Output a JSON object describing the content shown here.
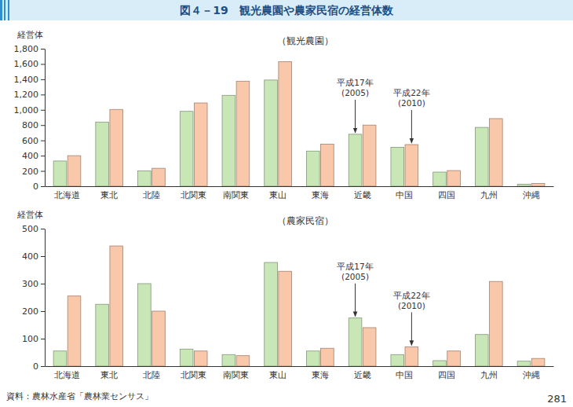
{
  "title": "図４－19　観光農園や農家民宿の経営体数",
  "source": "資料：農林水産省「農林業センサス」",
  "page": 281,
  "chart_data": [
    {
      "type": "bar",
      "title": "（観光農園）",
      "y_label": "経営体",
      "categories": [
        "北海道",
        "東北",
        "北陸",
        "北関東",
        "南関東",
        "東山",
        "東海",
        "近畿",
        "中国",
        "四国",
        "九州",
        "沖縄"
      ],
      "series": [
        {
          "color": "#c9e7b6",
          "values": [
            330,
            840,
            200,
            980,
            1190,
            1390,
            460,
            680,
            510,
            185,
            770,
            25
          ]
        },
        {
          "color": "#f9c7aa",
          "values": [
            400,
            1005,
            235,
            1090,
            1375,
            1630,
            550,
            800,
            545,
            205,
            885,
            35
          ]
        }
      ],
      "ylim": [
        0,
        1800
      ],
      "yticks": [
        0,
        200,
        400,
        600,
        800,
        {
          "value": 1000,
          "label": "1,000"
        },
        {
          "value": 1200,
          "label": "1,200"
        },
        {
          "value": 1400,
          "label": "1,400"
        },
        {
          "value": 1600,
          "label": "1,600"
        },
        {
          "value": 1800,
          "label": "1,800"
        }
      ],
      "grid": false,
      "annotations": [
        {
          "text": [
            "平成17年",
            "(2005)"
          ],
          "category": "近畿",
          "series": 0
        },
        {
          "text": [
            "平成22年",
            "(2010)"
          ],
          "category": "中国",
          "series": 1
        }
      ]
    },
    {
      "type": "bar",
      "title": "（農家民宿）",
      "y_label": "経営体",
      "categories": [
        "北海道",
        "東北",
        "北陸",
        "北関東",
        "南関東",
        "東山",
        "東海",
        "近畿",
        "中国",
        "四国",
        "九州",
        "沖縄"
      ],
      "series": [
        {
          "color": "#c9e7b6",
          "values": [
            55,
            225,
            300,
            62,
            42,
            377,
            55,
            175,
            42,
            20,
            115,
            18
          ]
        },
        {
          "color": "#f9c7aa",
          "values": [
            255,
            437,
            200,
            55,
            38,
            345,
            65,
            140,
            70,
            55,
            308,
            28
          ]
        }
      ],
      "ylim": [
        0,
        500
      ],
      "yticks": [
        0,
        100,
        200,
        300,
        400,
        500
      ],
      "grid": false,
      "annotations": [
        {
          "text": [
            "平成17年",
            "(2005)"
          ],
          "category": "近畿",
          "series": 0
        },
        {
          "text": [
            "平成22年",
            "(2010)"
          ],
          "category": "中国",
          "series": 1
        }
      ]
    }
  ]
}
